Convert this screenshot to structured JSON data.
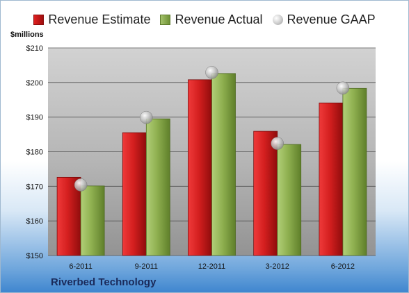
{
  "chart_data": {
    "type": "bar",
    "categories": [
      "6-2011",
      "9-2011",
      "12-2011",
      "3-2012",
      "6-2012"
    ],
    "series": [
      {
        "name": "Revenue Estimate",
        "values": [
          172.6,
          185.5,
          200.8,
          185.9,
          194.1
        ],
        "color": "#d42020"
      },
      {
        "name": "Revenue Actual",
        "values": [
          170.1,
          189.5,
          202.6,
          182.1,
          198.3
        ],
        "color": "#8fb050"
      },
      {
        "name": "Revenue GAAP",
        "values": [
          170.4,
          189.9,
          202.9,
          182.4,
          198.4
        ],
        "color": "#b8b8b8",
        "marker": "sphere"
      }
    ],
    "yticks": [
      "$150",
      "$160",
      "$170",
      "$180",
      "$190",
      "$200",
      "$210"
    ],
    "ylim": [
      150,
      210
    ],
    "ylabel": "$millions",
    "grid": true,
    "legend": "top-center"
  },
  "footer": {
    "company": "Riverbed Technology"
  }
}
